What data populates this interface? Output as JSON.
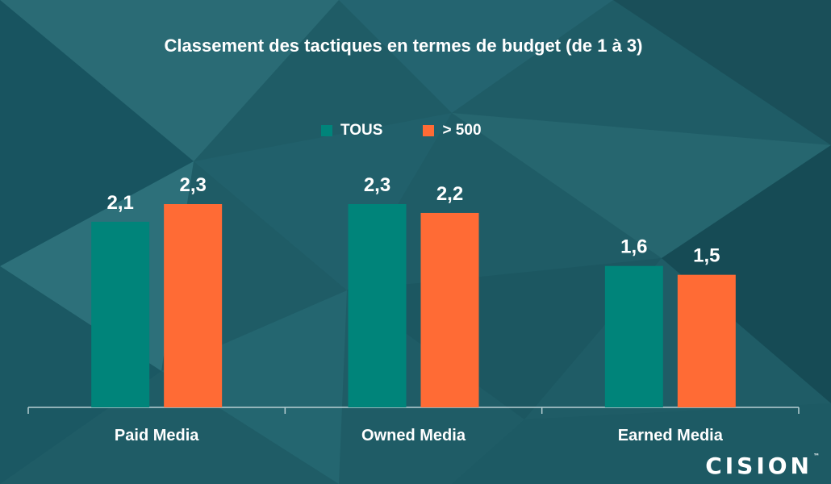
{
  "chart_data": {
    "type": "bar",
    "title": "Classement des tactiques en termes de budget (de 1 à 3)",
    "categories": [
      "Paid Media",
      "Owned Media",
      "Earned Media"
    ],
    "series": [
      {
        "name": "TOUS",
        "values": [
          2.1,
          2.3,
          1.6
        ],
        "labels": [
          "2,1",
          "2,3",
          "1,6"
        ],
        "color": "#00847a"
      },
      {
        "name": "> 500",
        "values": [
          2.3,
          2.2,
          1.5
        ],
        "labels": [
          "2,3",
          "2,2",
          "1,5"
        ],
        "color": "#ff6b35"
      }
    ],
    "ylim": [
      0,
      2.3
    ],
    "grid": false,
    "legend_position": "top-center"
  },
  "brand": {
    "logo_text": "CISION",
    "logo_tm": "™"
  },
  "colors": {
    "background": "#1e5b66",
    "text": "#ffffff",
    "axis": "#b8cfd3"
  }
}
